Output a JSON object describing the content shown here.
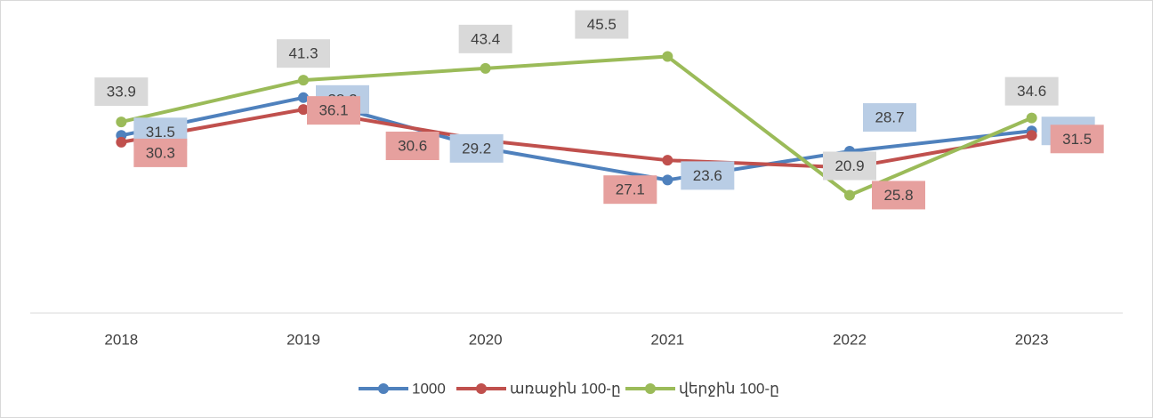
{
  "chart_data": {
    "type": "line",
    "categories": [
      "2018",
      "2019",
      "2020",
      "2021",
      "2022",
      "2023"
    ],
    "series": [
      {
        "name": "1000",
        "color": "#4f81bd",
        "label_color": "#b9cde5",
        "values": [
          31.5,
          38.2,
          29.2,
          23.6,
          28.7,
          32.3
        ]
      },
      {
        "name": "առաջին 100-ը",
        "color": "#c0504d",
        "label_color": "#e6a09e",
        "values": [
          30.3,
          36.1,
          30.6,
          27.1,
          25.8,
          31.5
        ]
      },
      {
        "name": "վերջին 100-ը",
        "color": "#9bbb59",
        "label_color": "#d9d9d9",
        "values": [
          33.9,
          41.3,
          43.4,
          45.5,
          20.9,
          34.6
        ]
      }
    ],
    "ylim": [
      0,
      50
    ],
    "grid": false,
    "legend": "bottom"
  }
}
